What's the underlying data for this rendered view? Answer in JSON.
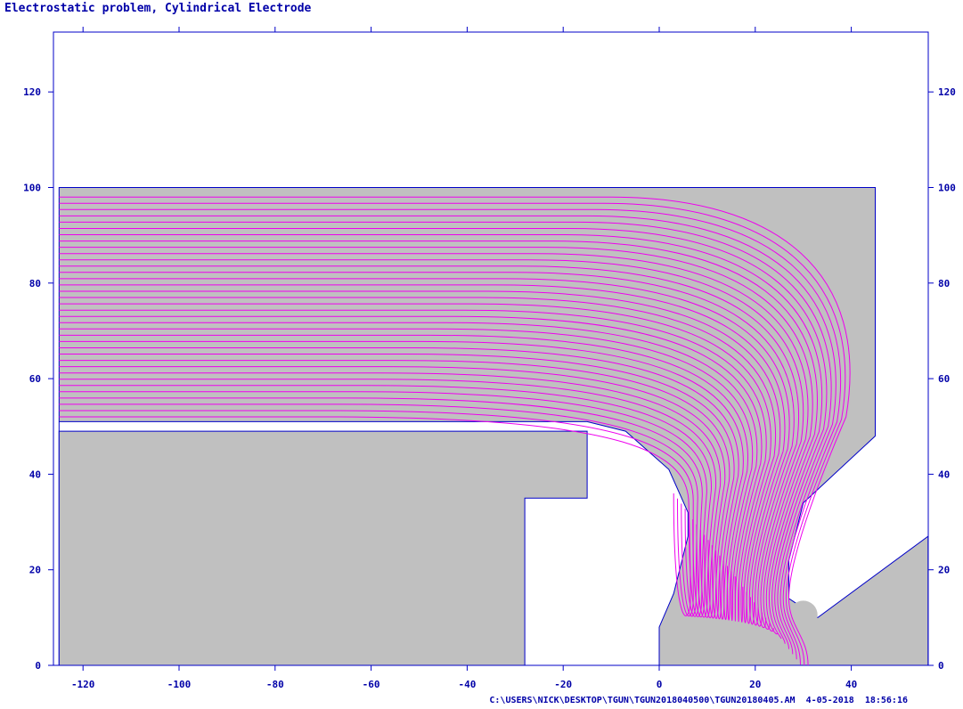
{
  "title": "Electrostatic problem, Cylindrical Electrode",
  "footer": "C:\\USERS\\NICK\\DESKTOP\\TGUN\\TGUN2018040500\\TGUN20180405.AM  4-05-2018  18:56:16",
  "colors": {
    "axis": "#0000c8",
    "label": "#0000a8",
    "region_fill": "#c0c0c0",
    "boundary": "#0000c8",
    "equipotential": "#ee00ee",
    "background": "#ffffff"
  },
  "chart_data": {
    "type": "line",
    "title": "Electrostatic problem, Cylindrical Electrode",
    "xlabel": "",
    "ylabel": "",
    "xlim": [
      -125,
      56
    ],
    "ylim": [
      0,
      132
    ],
    "x_ticks": [
      -120,
      -100,
      -80,
      -60,
      -40,
      -20,
      0,
      20,
      40
    ],
    "y_ticks": [
      0,
      20,
      40,
      60,
      80,
      100,
      120
    ],
    "grid": false,
    "solution_region_outline": [
      [
        -125,
        0
      ],
      [
        -125,
        100
      ],
      [
        45,
        100
      ],
      [
        45,
        48
      ],
      [
        30,
        34
      ],
      [
        27,
        22
      ],
      [
        27,
        14
      ],
      [
        33,
        10
      ],
      [
        56,
        27
      ],
      [
        56,
        0
      ],
      [
        0,
        0
      ],
      [
        0,
        8
      ],
      [
        3,
        15
      ],
      [
        6,
        27
      ],
      [
        6,
        32
      ],
      [
        2,
        41
      ],
      [
        -7,
        49
      ],
      [
        -15,
        51
      ],
      [
        -125,
        51
      ]
    ],
    "electrode_outline": [
      [
        -125,
        0
      ],
      [
        -125,
        49
      ],
      [
        -15,
        49
      ],
      [
        -15,
        35
      ],
      [
        -28,
        35
      ],
      [
        -28,
        0
      ]
    ],
    "cylinder_gap_corner": [
      30,
      10
    ],
    "equipotential_count": 36
  }
}
